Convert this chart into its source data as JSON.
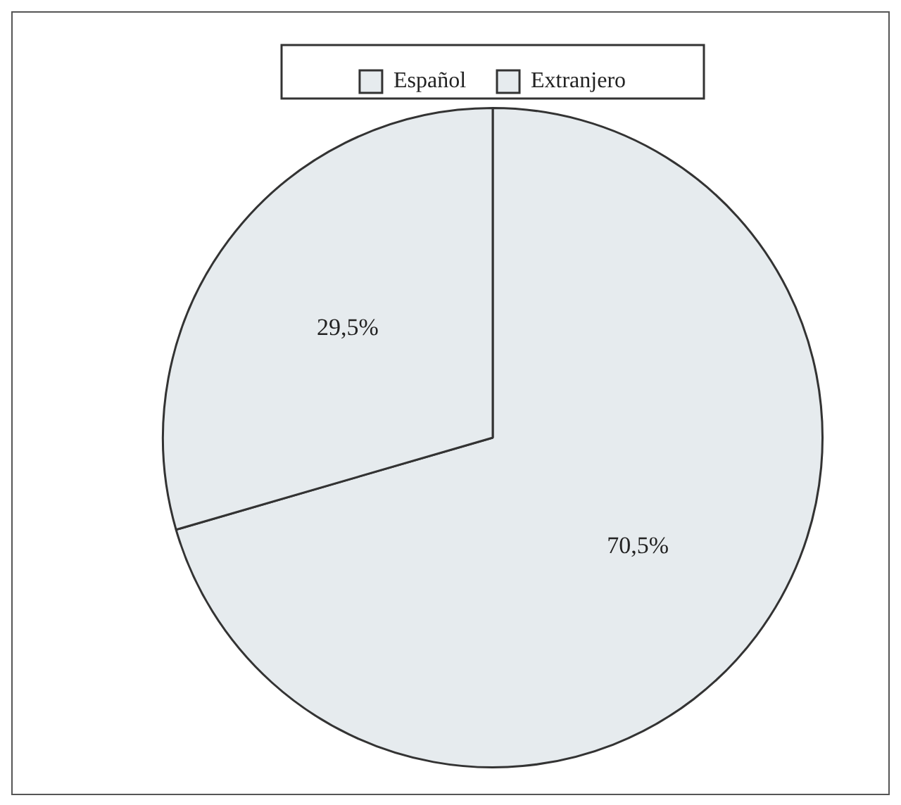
{
  "chart_data": {
    "type": "pie",
    "categories": [
      "Español",
      "Extranjero"
    ],
    "values": [
      70.5,
      29.5
    ],
    "colors": [
      "#e6ebee",
      "#e6ebee"
    ],
    "value_labels": [
      "70,5%",
      "29,5%"
    ],
    "legend": "top"
  }
}
